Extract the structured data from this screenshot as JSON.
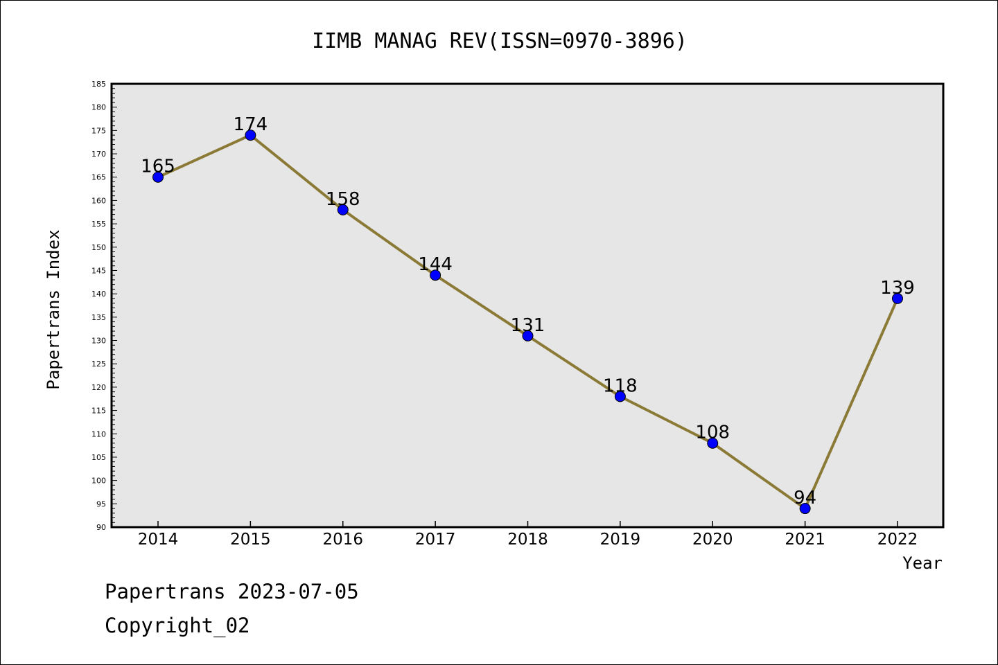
{
  "chart_data": {
    "type": "line",
    "title": "IIMB MANAG REV(ISSN=0970-3896)",
    "xlabel": "Year",
    "ylabel": "Papertrans Index",
    "categories": [
      "2014",
      "2015",
      "2016",
      "2017",
      "2018",
      "2019",
      "2020",
      "2021",
      "2022"
    ],
    "series": [
      {
        "values": [
          165,
          174,
          158,
          144,
          131,
          118,
          108,
          94,
          139
        ]
      }
    ],
    "ylim": [
      90,
      185
    ],
    "y_major_step": 5,
    "y_minor_step": 1,
    "grid": false,
    "colors": {
      "line": "#8b7a36",
      "marker": "#0000ff",
      "plot_background": "#e6e6e6",
      "frame": "#000000"
    }
  },
  "footer": {
    "line1": "Papertrans 2023-07-05",
    "line2": "Copyright_02"
  }
}
